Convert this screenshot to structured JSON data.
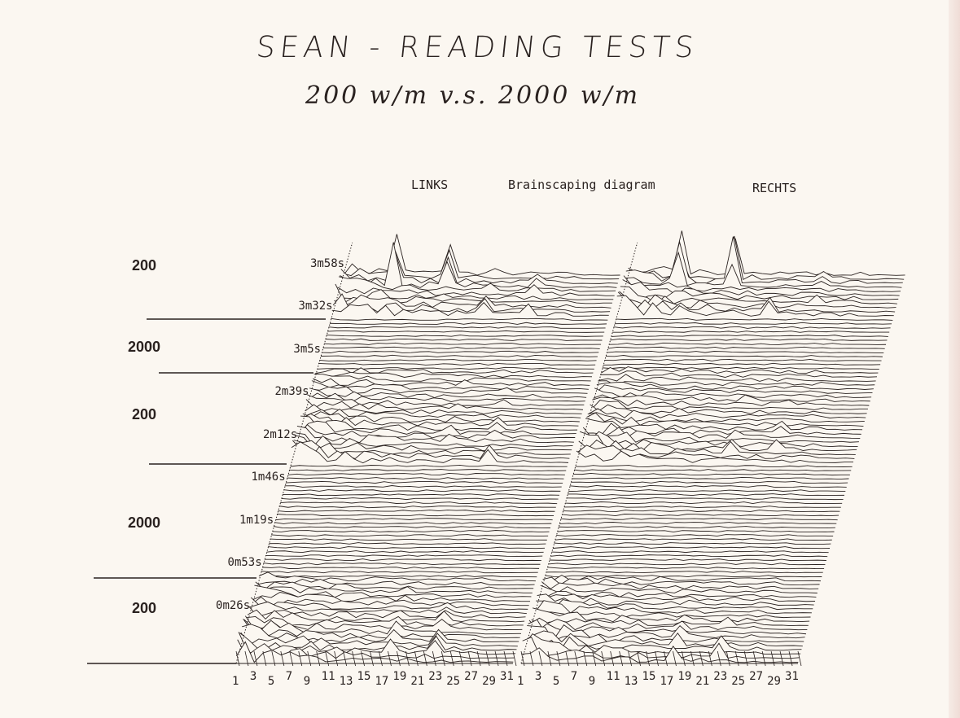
{
  "header": {
    "title": "SEAN -  READING TESTS",
    "subtitle": "200 w/m  v.s.  2000 w/m"
  },
  "chart_data": {
    "type": "waterfall",
    "title": "Brainscaping diagram",
    "panels": [
      {
        "label": "LINKS"
      },
      {
        "label": "RECHTS"
      }
    ],
    "x_ticks": [
      "1",
      "3",
      "5",
      "7",
      "9",
      "11",
      "13",
      "15",
      "17",
      "19",
      "21",
      "23",
      "25",
      "27",
      "29",
      "31"
    ],
    "channels": 32,
    "time_labels": [
      "0m26s",
      "0m53s",
      "1m19s",
      "1m46s",
      "2m12s",
      "2m39s",
      "3m5s",
      "3m32s",
      "3m58s"
    ],
    "time_range_s": [
      0,
      240
    ],
    "segments": [
      {
        "label": "200",
        "start_s": 0,
        "end_s": 44
      },
      {
        "label": "2000",
        "start_s": 44,
        "end_s": 115
      },
      {
        "label": "200",
        "start_s": 115,
        "end_s": 172
      },
      {
        "label": "2000",
        "start_s": 172,
        "end_s": 205
      },
      {
        "label": "200",
        "start_s": 205,
        "end_s": 240
      }
    ],
    "line_color": "#2a2220",
    "background_color": "#fbf7f1"
  }
}
